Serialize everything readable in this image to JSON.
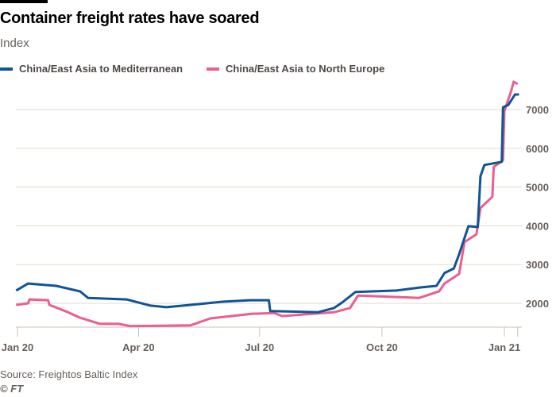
{
  "header": {
    "title": "Container freight rates have soared",
    "subtitle": "Index"
  },
  "footer": {
    "source": "Source: Freightos Baltic Index",
    "copyright": "© FT"
  },
  "chart_data": {
    "type": "line",
    "title": "Container freight rates have soared",
    "ylabel": "Index",
    "xlabel": "",
    "x_unit": "days since 1 Jan 2020",
    "xlim": [
      -1,
      377
    ],
    "ylim": [
      1400,
      7800
    ],
    "y_ticks": [
      2000,
      3000,
      4000,
      5000,
      6000,
      7000
    ],
    "y_tick_labels": [
      "2000",
      "3000",
      "4000",
      "5000",
      "6000",
      "7000"
    ],
    "y_axis_side": "right",
    "x_ticks": [
      0,
      91,
      182,
      274,
      366,
      376
    ],
    "x_tick_labels": [
      "Jan 20",
      "Apr 20",
      "Jul 20",
      "Oct 20",
      "Jan 21",
      ""
    ],
    "grid": true,
    "legend_position": "top-left",
    "series": [
      {
        "name": "China/East Asia to Mediterranean",
        "color": "#0f5499",
        "points": [
          [
            -1,
            2330
          ],
          [
            8,
            2510
          ],
          [
            29,
            2450
          ],
          [
            47,
            2310
          ],
          [
            53,
            2140
          ],
          [
            82,
            2100
          ],
          [
            100,
            1940
          ],
          [
            112,
            1900
          ],
          [
            130,
            1960
          ],
          [
            154,
            2040
          ],
          [
            175,
            2080
          ],
          [
            189,
            2080
          ],
          [
            190,
            1800
          ],
          [
            226,
            1770
          ],
          [
            238,
            1880
          ],
          [
            244,
            2020
          ],
          [
            254,
            2290
          ],
          [
            285,
            2330
          ],
          [
            303,
            2410
          ],
          [
            315,
            2450
          ],
          [
            321,
            2780
          ],
          [
            328,
            2900
          ],
          [
            332,
            3270
          ],
          [
            335,
            3580
          ],
          [
            339,
            3990
          ],
          [
            346,
            3970
          ],
          [
            348,
            5280
          ],
          [
            351,
            5570
          ],
          [
            364,
            5650
          ],
          [
            365,
            7060
          ],
          [
            369,
            7120
          ],
          [
            374,
            7390
          ],
          [
            377,
            7390
          ]
        ]
      },
      {
        "name": "China/East Asia to North Europe",
        "color": "#eb5e8d",
        "points": [
          [
            -1,
            1960
          ],
          [
            8,
            2000
          ],
          [
            9,
            2100
          ],
          [
            23,
            2080
          ],
          [
            24,
            1960
          ],
          [
            38,
            1770
          ],
          [
            47,
            1630
          ],
          [
            62,
            1470
          ],
          [
            76,
            1470
          ],
          [
            85,
            1410
          ],
          [
            130,
            1430
          ],
          [
            145,
            1610
          ],
          [
            176,
            1730
          ],
          [
            193,
            1750
          ],
          [
            199,
            1670
          ],
          [
            238,
            1770
          ],
          [
            250,
            1880
          ],
          [
            256,
            2200
          ],
          [
            272,
            2180
          ],
          [
            302,
            2140
          ],
          [
            317,
            2310
          ],
          [
            321,
            2510
          ],
          [
            332,
            2760
          ],
          [
            336,
            3580
          ],
          [
            345,
            3780
          ],
          [
            348,
            4460
          ],
          [
            357,
            4750
          ],
          [
            358,
            5520
          ],
          [
            365,
            5690
          ],
          [
            366,
            6960
          ],
          [
            371,
            7470
          ],
          [
            373,
            7720
          ],
          [
            376,
            7660
          ]
        ]
      }
    ]
  }
}
